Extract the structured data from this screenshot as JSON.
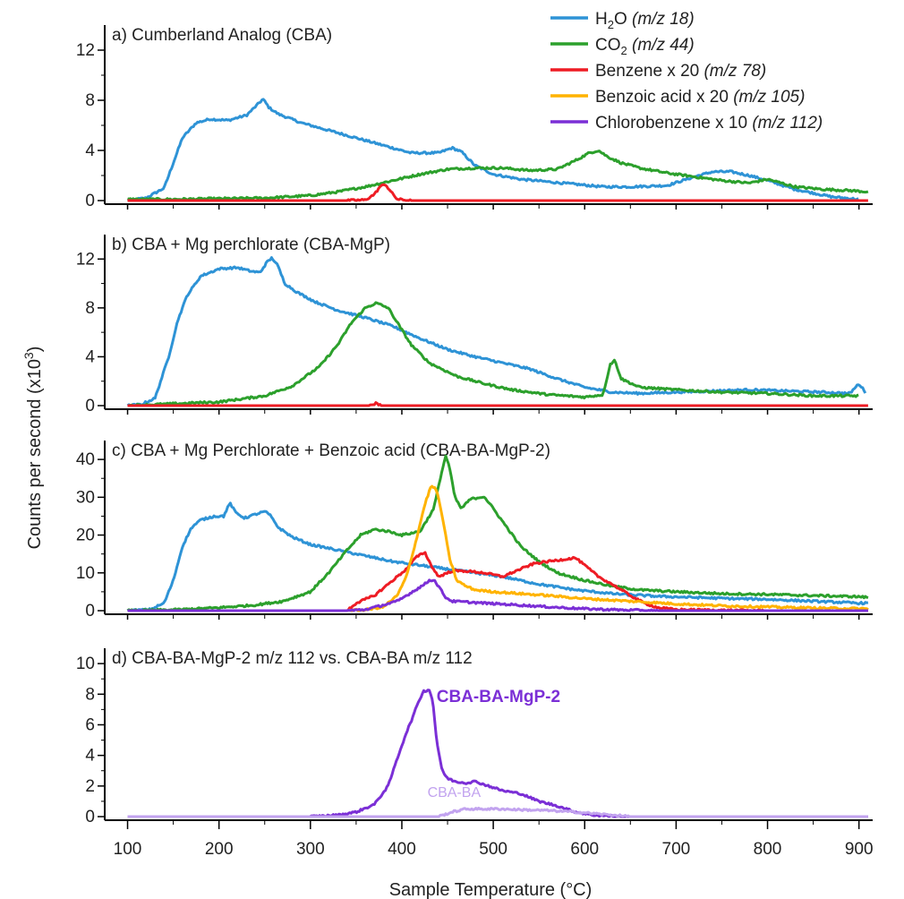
{
  "chart_data": {
    "type": "line",
    "xlabel": "Sample Temperature (°C)",
    "ylabel": "Counts per second (x10³)",
    "xlim": [
      75,
      915
    ],
    "xticks": [
      100,
      200,
      300,
      400,
      500,
      600,
      700,
      800,
      900
    ],
    "colors": {
      "h2o": "#2e93d6",
      "co2": "#2ca02c",
      "benzene": "#ee1c24",
      "benzoic": "#ffb300",
      "chlorobenzene": "#7b2fd6",
      "chlorobenzene_light": "#c2a3ef"
    },
    "legend": {
      "placement": "top-right",
      "entries": [
        {
          "key": "h2o",
          "label": "H₂O",
          "mz": "(m/z 18)"
        },
        {
          "key": "co2",
          "label": "CO₂",
          "mz": "(m/z 44)"
        },
        {
          "key": "benzene",
          "label": "Benzene x 20",
          "mz": "(m/z 78)"
        },
        {
          "key": "benzoic",
          "label": "Benzoic acid x 20",
          "mz": "(m/z 105)"
        },
        {
          "key": "chlorobenzene",
          "label": "Chlorobenzene x 10",
          "mz": "(m/z 112)"
        }
      ]
    },
    "panels": [
      {
        "title": "a) Cumberland Analog (CBA)",
        "ylim": [
          0,
          14
        ],
        "yticks": [
          0,
          4,
          8,
          12
        ],
        "series": [
          {
            "key": "h2o",
            "x": [
              100,
              120,
              140,
              160,
              175,
              190,
              210,
              230,
              240,
              248,
              255,
              265,
              290,
              320,
              350,
              380,
              410,
              440,
              455,
              465,
              480,
              500,
              530,
              560,
              590,
              620,
              650,
              690,
              720,
              740,
              760,
              780,
              800,
              830,
              850,
              870,
              900
            ],
            "y": [
              0,
              0.2,
              1,
              5,
              6.2,
              6.5,
              6.4,
              6.8,
              7.5,
              8.1,
              7.4,
              6.9,
              6.2,
              5.6,
              5.0,
              4.4,
              3.8,
              3.8,
              4.2,
              3.9,
              2.8,
              2.1,
              1.7,
              1.5,
              1.3,
              1.1,
              1.1,
              1.2,
              1.9,
              2.3,
              2.3,
              2.0,
              1.6,
              0.9,
              0.6,
              0.3,
              0.1
            ]
          },
          {
            "key": "co2",
            "x": [
              100,
              150,
              200,
              250,
              300,
              330,
              360,
              390,
              420,
              450,
              480,
              510,
              540,
              570,
              590,
              605,
              615,
              625,
              640,
              660,
              690,
              720,
              750,
              780,
              800,
              830,
              860,
              890,
              910
            ],
            "y": [
              0.1,
              0.1,
              0.15,
              0.2,
              0.4,
              0.7,
              1.1,
              1.6,
              2.1,
              2.5,
              2.6,
              2.6,
              2.4,
              2.5,
              3.2,
              3.8,
              4.0,
              3.5,
              3.0,
              2.6,
              2.2,
              1.9,
              1.6,
              1.4,
              1.7,
              1.1,
              0.9,
              0.8,
              0.7
            ]
          },
          {
            "key": "benzene",
            "x": [
              100,
              340,
              360,
              370,
              376,
              382,
              388,
              395,
              410,
              910
            ],
            "y": [
              0,
              0,
              0.05,
              0.5,
              1.1,
              1.3,
              0.7,
              0.1,
              0,
              0
            ]
          }
        ]
      },
      {
        "title": "b) CBA + Mg perchlorate (CBA-MgP)",
        "ylim": [
          0,
          14
        ],
        "yticks": [
          0,
          4,
          8,
          12
        ],
        "series": [
          {
            "key": "h2o",
            "x": [
              100,
              115,
              130,
              145,
              155,
              165,
              180,
              200,
              220,
              235,
              245,
              252,
              258,
              264,
              272,
              285,
              305,
              330,
              360,
              390,
              420,
              450,
              480,
              510,
              540,
              570,
              600,
              630,
              660,
              700,
              740,
              780,
              820,
              860,
              890,
              900,
              908
            ],
            "y": [
              0,
              0.1,
              0.6,
              4,
              7,
              9,
              10.6,
              11.2,
              11.3,
              11,
              10.9,
              11.7,
              12.1,
              11.5,
              10,
              9.3,
              8.5,
              7.8,
              7.2,
              6.5,
              5.5,
              4.6,
              4.0,
              3.5,
              3.0,
              2.2,
              1.5,
              1.1,
              1.0,
              1.1,
              1.2,
              1.3,
              1.2,
              1.1,
              1.0,
              1.8,
              1.0
            ]
          },
          {
            "key": "co2",
            "x": [
              100,
              150,
              200,
              250,
              280,
              310,
              330,
              345,
              360,
              372,
              385,
              395,
              410,
              430,
              460,
              490,
              520,
              560,
              600,
              620,
              628,
              633,
              640,
              660,
              700,
              750,
              800,
              850,
              900
            ],
            "y": [
              0,
              0.15,
              0.3,
              0.8,
              1.6,
              3.2,
              5,
              6.8,
              8.0,
              8.4,
              8.0,
              6.8,
              5.0,
              3.5,
              2.4,
              1.8,
              1.3,
              0.9,
              0.7,
              0.9,
              3.4,
              3.7,
              2.2,
              1.5,
              1.3,
              1.1,
              1.0,
              0.8,
              0.8
            ]
          },
          {
            "key": "benzene",
            "x": [
              100,
              365,
              372,
              378,
              910
            ],
            "y": [
              0,
              0,
              0.2,
              0,
              0
            ]
          }
        ]
      },
      {
        "title": "c) CBA + Mg Perchlorate + Benzoic acid (CBA-BA-MgP-2)",
        "ylim": [
          0,
          45
        ],
        "yticks": [
          0,
          10,
          20,
          30,
          40
        ],
        "series": [
          {
            "key": "h2o",
            "x": [
              100,
              125,
              140,
              150,
              160,
              170,
              180,
              195,
              205,
              212,
              218,
              228,
              240,
              250,
              255,
              265,
              280,
              300,
              330,
              360,
              390,
              420,
              450,
              480,
              510,
              550,
              590,
              630,
              680,
              720,
              760,
              800,
              850,
              900,
              910
            ],
            "y": [
              0,
              0.3,
              2,
              8,
              17,
              22,
              24,
              25,
              25,
              28.5,
              26,
              24.5,
              25.5,
              26.2,
              25.5,
              22,
              19.5,
              17.5,
              16,
              14.5,
              13,
              12,
              11,
              10,
              9,
              7,
              5.5,
              4.5,
              3.8,
              3.5,
              3.2,
              3,
              2.5,
              2,
              2
            ]
          },
          {
            "key": "co2",
            "x": [
              100,
              150,
              200,
              240,
              270,
              300,
              320,
              340,
              355,
              370,
              385,
              400,
              420,
              435,
              442,
              448,
              452,
              458,
              465,
              475,
              490,
              500,
              515,
              530,
              550,
              570,
              600,
              630,
              660,
              700,
              750,
              800,
              850,
              900,
              910
            ],
            "y": [
              0,
              0.2,
              0.8,
              1.5,
              2.5,
              5,
              10,
              16,
              20,
              21.5,
              21,
              20,
              21,
              27,
              35,
              41,
              38,
              30,
              27,
              29.5,
              30.2,
              27,
              22,
              17,
              13,
              10,
              8,
              6.5,
              5.5,
              5,
              4.5,
              4.3,
              4,
              3.7,
              3.5
            ]
          },
          {
            "key": "benzene",
            "x": [
              100,
              340,
              350,
              370,
              390,
              405,
              415,
              425,
              432,
              440,
              455,
              470,
              490,
              510,
              530,
              545,
              560,
              575,
              590,
              600,
              615,
              630,
              650,
              665,
              680,
              700,
              750,
              800,
              850,
              910
            ],
            "y": [
              0,
              0,
              2,
              4,
              8,
              11,
              14,
              15.5,
              12,
              9,
              10.5,
              10.5,
              10,
              9,
              11,
              12.5,
              13,
              13.5,
              14,
              12,
              9,
              7,
              4,
              2,
              0.8,
              0.3,
              0.1,
              0,
              0,
              0
            ]
          },
          {
            "key": "benzoic",
            "x": [
              100,
              340,
              360,
              380,
              395,
              405,
              415,
              425,
              432,
              438,
              445,
              452,
              460,
              470,
              480,
              500,
              530,
              560,
              600,
              650,
              700,
              750,
              800,
              850,
              910
            ],
            "y": [
              0,
              0,
              0.2,
              1,
              4,
              9,
              18,
              28,
              33,
              32,
              24,
              14,
              8,
              6.5,
              5.5,
              5,
              4.5,
              4,
              3.2,
              2.5,
              1.8,
              1.3,
              1.0,
              0.7,
              0.5
            ]
          },
          {
            "key": "chlorobenzene",
            "x": [
              100,
              340,
              360,
              380,
              395,
              405,
              415,
              425,
              430,
              435,
              440,
              448,
              455,
              470,
              490,
              520,
              560,
              600,
              640,
              680,
              910
            ],
            "y": [
              0,
              0,
              0.3,
              1.5,
              2.5,
              4,
              5.5,
              7,
              8,
              8.2,
              6.5,
              3.5,
              2.5,
              2.3,
              2.0,
              1.6,
              1.0,
              0.5,
              0.2,
              0,
              0
            ]
          }
        ]
      },
      {
        "title": "d) CBA-BA-MgP-2 m/z 112 vs. CBA-BA m/z 112",
        "ylim": [
          0,
          11
        ],
        "yticks": [
          0,
          2,
          4,
          6,
          8,
          10
        ],
        "annotations": [
          {
            "text": "CBA-BA-MgP-2",
            "key": "chlorobenzene",
            "x": 438,
            "y": 7.5
          },
          {
            "text": "CBA-BA",
            "key": "chlorobenzene_light",
            "x": 428,
            "y": 1.3
          }
        ],
        "series": [
          {
            "key": "chlorobenzene",
            "x": [
              100,
              300,
              330,
              350,
              370,
              385,
              395,
              405,
              412,
              418,
              424,
              430,
              434,
              438,
              444,
              450,
              458,
              470,
              480,
              495,
              510,
              530,
              550,
              570,
              590,
              600,
              610,
              640,
              910
            ],
            "y": [
              0,
              0,
              0.1,
              0.3,
              0.8,
              2,
              3.8,
              5.5,
              6.5,
              7.5,
              8.2,
              8.3,
              7.5,
              5,
              3,
              2.5,
              2.3,
              2.2,
              2.3,
              2.0,
              1.7,
              1.5,
              1.0,
              0.7,
              0.3,
              0.2,
              0.1,
              0,
              0
            ]
          },
          {
            "key": "chlorobenzene_light",
            "x": [
              100,
              440,
              455,
              470,
              490,
              510,
              530,
              560,
              590,
              620,
              650,
              910
            ],
            "y": [
              0,
              0,
              0.3,
              0.5,
              0.5,
              0.5,
              0.45,
              0.4,
              0.3,
              0.15,
              0,
              0
            ]
          }
        ]
      }
    ]
  }
}
